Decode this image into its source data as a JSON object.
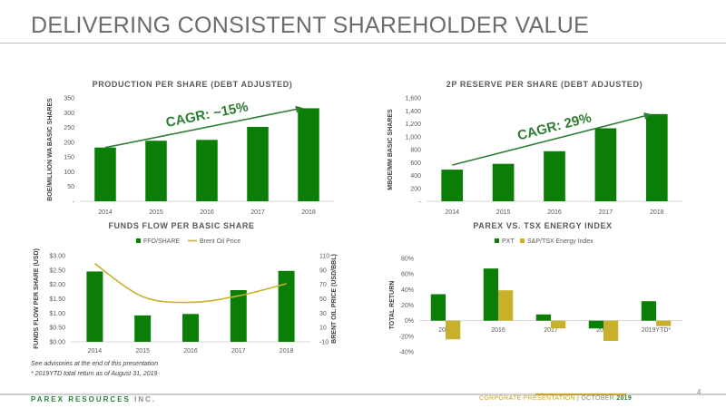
{
  "page": {
    "title": "DELIVERING CONSISTENT SHAREHOLDER VALUE",
    "footnote_1": "See advisories at the end of this presentation",
    "footnote_2": "* 2019YTD total return as of August 31, 2019",
    "brand_name": "PAREX RESOURCES",
    "brand_suffix": "INC.",
    "presentation": "CORPORATE PRESENTATION",
    "separator": "|",
    "month": "OCTOBER",
    "year": "2019",
    "page_number": "4"
  },
  "colors": {
    "green": "#0a7e07",
    "gold": "#c9b02b",
    "arrow": "#2e7d32"
  },
  "chart_data": [
    {
      "type": "bar",
      "title": "PRODUCTION PER SHARE (DEBT ADJUSTED)",
      "categories": [
        "2014",
        "2015",
        "2016",
        "2017",
        "2018"
      ],
      "values": [
        182,
        205,
        208,
        252,
        315
      ],
      "ylabel": "BOE/MILLION WA BASIC SHARES",
      "ylim": [
        0,
        350
      ],
      "yticks": [
        0,
        50,
        100,
        150,
        200,
        250,
        300,
        350
      ],
      "ytick_labels": [
        "-",
        "50",
        "100",
        "150",
        "200",
        "250",
        "300",
        "350"
      ],
      "annotation": {
        "text": "CAGR: ~15%",
        "from": 182,
        "to": 315
      },
      "grid": false
    },
    {
      "type": "bar",
      "title": "2P RESERVE PER SHARE (DEBT ADJUSTED)",
      "categories": [
        "2014",
        "2015",
        "2016",
        "2017",
        "2018"
      ],
      "values": [
        490,
        580,
        775,
        1130,
        1350
      ],
      "ylabel": "MBOE/MM BASIC SHARES",
      "ylim": [
        0,
        1600
      ],
      "yticks": [
        0,
        200,
        400,
        600,
        800,
        1000,
        1200,
        1400,
        1600
      ],
      "ytick_labels": [
        "-",
        "200",
        "400",
        "600",
        "800",
        "1,000",
        "1,200",
        "1,400",
        "1,600"
      ],
      "annotation": {
        "text": "CAGR: 29%",
        "from": 560,
        "to": 1340
      },
      "grid": false
    },
    {
      "type": "bar",
      "title": "FUNDS FLOW PER BASIC SHARE",
      "categories": [
        "2014",
        "2015",
        "2016",
        "2017",
        "2018"
      ],
      "series": [
        {
          "name": "FFO/SHARE",
          "type": "bar",
          "axis": "left",
          "values": [
            2.45,
            0.92,
            0.97,
            1.8,
            2.47
          ]
        },
        {
          "name": "Brent Oil Price",
          "type": "line",
          "axis": "right",
          "values": [
            99,
            53,
            45,
            54,
            71
          ]
        }
      ],
      "ylabel": "FUNDS FLOW PER SHARE (USD)",
      "ylim": [
        0,
        3
      ],
      "yticks": [
        0,
        0.5,
        1,
        1.5,
        2,
        2.5,
        3
      ],
      "ytick_labels": [
        "$0.00",
        "$0.50",
        "$1.00",
        "$1.50",
        "$2.00",
        "$2.50",
        "$3.00"
      ],
      "y2label": "BRENT OIL PRICE (USD/BBL)",
      "y2lim": [
        -10,
        110
      ],
      "y2ticks": [
        -10,
        10,
        30,
        50,
        70,
        90,
        110
      ],
      "y2tick_labels": [
        "-10",
        "10",
        "30",
        "50",
        "70",
        "90",
        "110"
      ],
      "legend": "top",
      "grid": false
    },
    {
      "type": "bar",
      "title": "PAREX VS. TSX ENERGY INDEX",
      "categories": [
        "2015",
        "2016",
        "2017",
        "2018",
        "2019YTD*"
      ],
      "series": [
        {
          "name": "PXT",
          "values": [
            0.34,
            0.67,
            0.08,
            -0.1,
            0.25
          ]
        },
        {
          "name": "S&P/TSX Energy Index",
          "values": [
            -0.24,
            0.39,
            -0.1,
            -0.26,
            -0.07
          ]
        }
      ],
      "ylabel": "TOTAL RETURN",
      "ylim": [
        -0.4,
        0.8
      ],
      "yticks": [
        -0.4,
        -0.2,
        0,
        0.2,
        0.4,
        0.6,
        0.8
      ],
      "ytick_labels": [
        "-40%",
        "-20%",
        "0%",
        "20%",
        "40%",
        "60%",
        "80%"
      ],
      "legend": "top",
      "grid": false
    }
  ]
}
